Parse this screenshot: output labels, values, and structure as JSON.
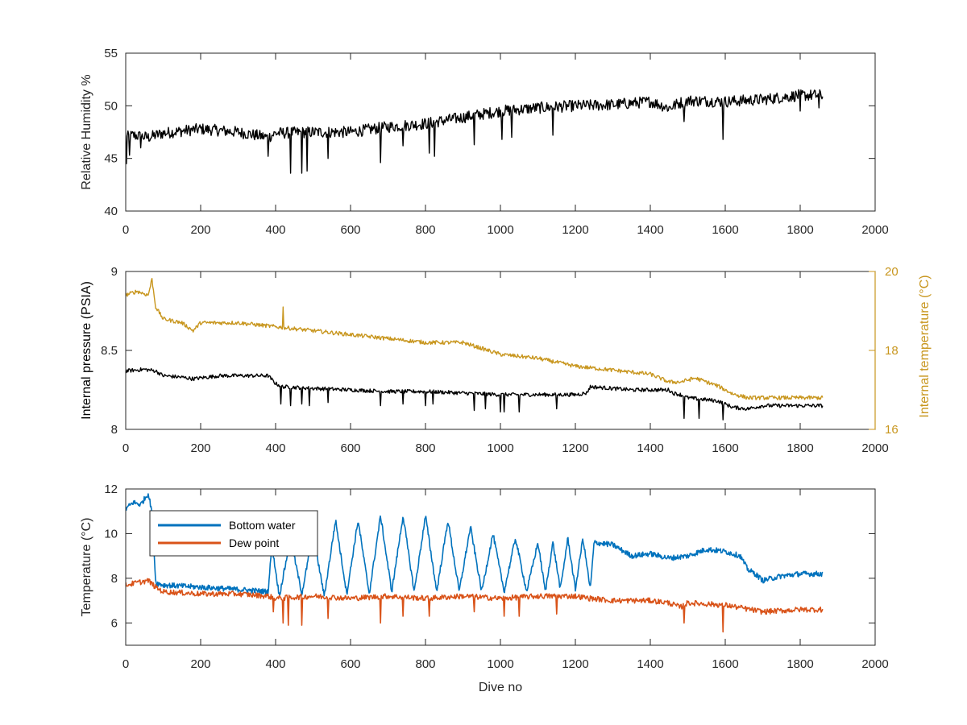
{
  "colors": {
    "black": "#000000",
    "gold": "#c8961e",
    "blue": "#0072bd",
    "orange": "#d95319",
    "axis": "#262626"
  },
  "chart_data": [
    {
      "type": "line",
      "xlabel": "",
      "ylabel": "Relative Humidity %",
      "xlim": [
        0,
        2000
      ],
      "ylim": [
        40,
        55
      ],
      "x_ticks": [
        "0",
        "200",
        "400",
        "600",
        "800",
        "1000",
        "1200",
        "1400",
        "1600",
        "1800",
        "2000"
      ],
      "y_ticks": [
        "40",
        "45",
        "50",
        "55"
      ],
      "grid": false,
      "series": [
        {
          "color": "#000000",
          "x": [
            0,
            20,
            60,
            100,
            200,
            300,
            380,
            400,
            500,
            600,
            700,
            800,
            900,
            1000,
            1100,
            1200,
            1300,
            1400,
            1450,
            1480,
            1500,
            1600,
            1700,
            1800,
            1860
          ],
          "y": [
            47.0,
            47.2,
            47.0,
            47.4,
            47.8,
            47.5,
            47.0,
            47.4,
            47.5,
            47.5,
            48.0,
            48.3,
            48.9,
            49.5,
            49.8,
            50.0,
            50.1,
            50.4,
            49.8,
            50.3,
            50.5,
            50.4,
            50.6,
            51.0,
            51.0
          ],
          "dips": [
            [
              2,
              44.5
            ],
            [
              10,
              45.3
            ],
            [
              40,
              46.0
            ],
            [
              380,
              45.2
            ],
            [
              440,
              43.6
            ],
            [
              470,
              43.6
            ],
            [
              485,
              43.8
            ],
            [
              540,
              45.0
            ],
            [
              680,
              44.6
            ],
            [
              740,
              46.2
            ],
            [
              810,
              45.5
            ],
            [
              825,
              45.2
            ],
            [
              930,
              46.3
            ],
            [
              1005,
              46.8
            ],
            [
              1030,
              47.0
            ],
            [
              1140,
              47.2
            ],
            [
              1490,
              48.5
            ],
            [
              1595,
              46.8
            ],
            [
              1800,
              49.5
            ],
            [
              1850,
              49.8
            ]
          ]
        }
      ]
    },
    {
      "type": "line",
      "xlabel": "",
      "ylabel": "Internal pressure (PSIA)",
      "ylabel_right": "Internal temperature (°C)",
      "xlim": [
        0,
        2000
      ],
      "ylim": [
        8,
        9
      ],
      "ylim_right": [
        16,
        20
      ],
      "x_ticks": [
        "0",
        "200",
        "400",
        "600",
        "800",
        "1000",
        "1200",
        "1400",
        "1600",
        "1800",
        "2000"
      ],
      "y_ticks": [
        "8",
        "8.5",
        "9"
      ],
      "y_ticks_right": [
        "16",
        "18",
        "20"
      ],
      "grid": false,
      "series": [
        {
          "axis": "left",
          "color": "#000000",
          "x": [
            0,
            50,
            80,
            100,
            150,
            180,
            250,
            380,
            400,
            420,
            500,
            600,
            700,
            800,
            900,
            1000,
            1100,
            1200,
            1230,
            1240,
            1350,
            1450,
            1460,
            1480,
            1500,
            1580,
            1620,
            1660,
            1700,
            1860
          ],
          "y": [
            8.37,
            8.38,
            8.37,
            8.34,
            8.33,
            8.32,
            8.34,
            8.34,
            8.29,
            8.27,
            8.26,
            8.25,
            8.24,
            8.24,
            8.23,
            8.22,
            8.22,
            8.22,
            8.23,
            8.27,
            8.25,
            8.25,
            8.23,
            8.22,
            8.2,
            8.18,
            8.14,
            8.13,
            8.15,
            8.15
          ],
          "dips": [
            [
              415,
              8.16
            ],
            [
              440,
              8.15
            ],
            [
              470,
              8.16
            ],
            [
              490,
              8.15
            ],
            [
              540,
              8.17
            ],
            [
              680,
              8.15
            ],
            [
              740,
              8.16
            ],
            [
              800,
              8.15
            ],
            [
              820,
              8.16
            ],
            [
              930,
              8.12
            ],
            [
              960,
              8.13
            ],
            [
              1000,
              8.11
            ],
            [
              1010,
              8.11
            ],
            [
              1050,
              8.11
            ],
            [
              1150,
              8.13
            ],
            [
              1490,
              8.07
            ],
            [
              1530,
              8.07
            ],
            [
              1595,
              8.06
            ]
          ]
        },
        {
          "axis": "right",
          "color": "#c8961e",
          "x": [
            0,
            30,
            60,
            70,
            80,
            100,
            150,
            180,
            200,
            300,
            400,
            500,
            600,
            700,
            800,
            900,
            1000,
            1100,
            1200,
            1300,
            1400,
            1450,
            1480,
            1520,
            1580,
            1620,
            1660,
            1700,
            1860
          ],
          "y": [
            19.4,
            19.5,
            19.4,
            19.8,
            19.1,
            18.8,
            18.7,
            18.5,
            18.7,
            18.7,
            18.6,
            18.5,
            18.4,
            18.3,
            18.2,
            18.2,
            17.9,
            17.8,
            17.6,
            17.5,
            17.4,
            17.2,
            17.2,
            17.3,
            17.1,
            16.9,
            16.8,
            16.8,
            16.8
          ],
          "dips": [
            [
              420,
              19.1
            ]
          ]
        }
      ]
    },
    {
      "type": "line",
      "xlabel": "Dive no",
      "ylabel": "Temperature (°C)",
      "xlim": [
        0,
        2000
      ],
      "ylim": [
        5,
        12
      ],
      "x_ticks": [
        "0",
        "200",
        "400",
        "600",
        "800",
        "1000",
        "1200",
        "1400",
        "1600",
        "1800",
        "2000"
      ],
      "y_ticks": [
        "6",
        "8",
        "10",
        "12"
      ],
      "grid": false,
      "legend": "top-left",
      "series": [
        {
          "name": "Bottom water",
          "color": "#0072bd",
          "x": [
            0,
            20,
            40,
            60,
            70,
            80,
            100,
            200,
            300,
            380,
            390,
            410,
            440,
            470,
            500,
            530,
            560,
            590,
            620,
            650,
            680,
            710,
            740,
            770,
            800,
            830,
            860,
            890,
            920,
            950,
            980,
            1010,
            1040,
            1070,
            1100,
            1120,
            1140,
            1160,
            1180,
            1200,
            1220,
            1240,
            1250,
            1300,
            1350,
            1400,
            1450,
            1500,
            1550,
            1600,
            1640,
            1660,
            1680,
            1700,
            1750,
            1800,
            1860
          ],
          "y": [
            11.1,
            11.4,
            11.3,
            11.8,
            11.0,
            7.8,
            7.7,
            7.6,
            7.5,
            7.4,
            9.5,
            7.2,
            9.8,
            7.3,
            10.0,
            7.2,
            10.6,
            7.3,
            10.6,
            7.3,
            10.8,
            7.4,
            10.8,
            7.4,
            10.8,
            7.4,
            10.6,
            7.4,
            10.3,
            7.4,
            10.0,
            7.4,
            9.8,
            7.4,
            9.6,
            7.4,
            9.6,
            7.5,
            9.8,
            7.5,
            9.8,
            7.5,
            9.6,
            9.5,
            9.0,
            9.1,
            8.9,
            9.0,
            9.3,
            9.2,
            9.0,
            8.4,
            8.2,
            7.9,
            8.1,
            8.2,
            8.2
          ],
          "dips": []
        },
        {
          "name": "Dew point",
          "color": "#d95319",
          "x": [
            0,
            30,
            60,
            80,
            100,
            200,
            300,
            380,
            400,
            500,
            600,
            700,
            800,
            900,
            1000,
            1100,
            1200,
            1240,
            1300,
            1400,
            1450,
            1480,
            1500,
            1600,
            1700,
            1800,
            1860
          ],
          "y": [
            7.7,
            7.8,
            7.9,
            7.6,
            7.4,
            7.3,
            7.3,
            7.2,
            7.1,
            7.2,
            7.1,
            7.2,
            7.1,
            7.2,
            7.1,
            7.2,
            7.2,
            7.1,
            7.0,
            7.0,
            6.9,
            6.7,
            6.9,
            6.8,
            6.5,
            6.6,
            6.6
          ],
          "dips": [
            [
              395,
              6.5
            ],
            [
              420,
              6.0
            ],
            [
              435,
              5.9
            ],
            [
              470,
              5.9
            ],
            [
              540,
              6.2
            ],
            [
              680,
              6.0
            ],
            [
              740,
              6.3
            ],
            [
              810,
              6.3
            ],
            [
              930,
              6.5
            ],
            [
              1010,
              6.3
            ],
            [
              1050,
              6.3
            ],
            [
              1150,
              6.4
            ],
            [
              1490,
              6.0
            ],
            [
              1595,
              5.6
            ]
          ]
        }
      ]
    }
  ]
}
